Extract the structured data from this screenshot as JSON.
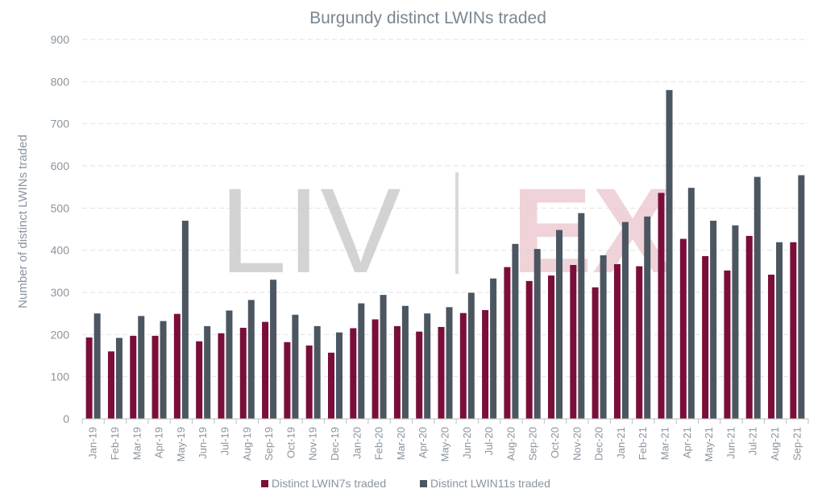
{
  "colors": {
    "lwin7": "#7a0e3a",
    "lwin11": "#4b5660",
    "text": "#8a949e",
    "title": "#7a8691",
    "grid": "#e2e2e2",
    "watermark_gray": "#c4c4c4",
    "watermark_pink": "#e9c4cc"
  },
  "watermark": {
    "left": "LIV",
    "right": "EX"
  },
  "chart_data": {
    "type": "bar",
    "title": "Burgundy distinct LWINs traded",
    "xlabel": "",
    "ylabel": "Number of distinct LWINs traded",
    "ylim": [
      0,
      900
    ],
    "yticks": [
      0,
      100,
      200,
      300,
      400,
      500,
      600,
      700,
      800,
      900
    ],
    "grid": true,
    "legend_position": "bottom",
    "categories": [
      "Jan-19",
      "Feb-19",
      "Mar-19",
      "Apr-19",
      "May-19",
      "Jun-19",
      "Jul-19",
      "Aug-19",
      "Sep-19",
      "Oct-19",
      "Nov-19",
      "Dec-19",
      "Jan-20",
      "Feb-20",
      "Mar-20",
      "Apr-20",
      "May-20",
      "Jun-20",
      "Jul-20",
      "Aug-20",
      "Sep-20",
      "Oct-20",
      "Nov-20",
      "Dec-20",
      "Jan-21",
      "Feb-21",
      "Mar-21",
      "Apr-21",
      "May-21",
      "Jun-21",
      "Jul-21",
      "Aug-21",
      "Sep-21"
    ],
    "series": [
      {
        "name": "Distinct LWIN7s traded",
        "color": "#7a0e3a",
        "values": [
          193,
          160,
          197,
          197,
          249,
          184,
          203,
          216,
          230,
          182,
          174,
          157,
          215,
          236,
          220,
          207,
          218,
          251,
          258,
          360,
          327,
          340,
          365,
          312,
          367,
          362,
          536,
          427,
          386,
          352,
          434,
          342,
          419
        ]
      },
      {
        "name": "Distinct LWIN11s traded",
        "color": "#4b5660",
        "values": [
          250,
          192,
          244,
          232,
          470,
          220,
          257,
          282,
          330,
          247,
          220,
          205,
          274,
          294,
          268,
          250,
          265,
          299,
          333,
          415,
          403,
          448,
          488,
          388,
          467,
          480,
          780,
          548,
          470,
          459,
          574,
          419,
          578
        ]
      }
    ]
  }
}
